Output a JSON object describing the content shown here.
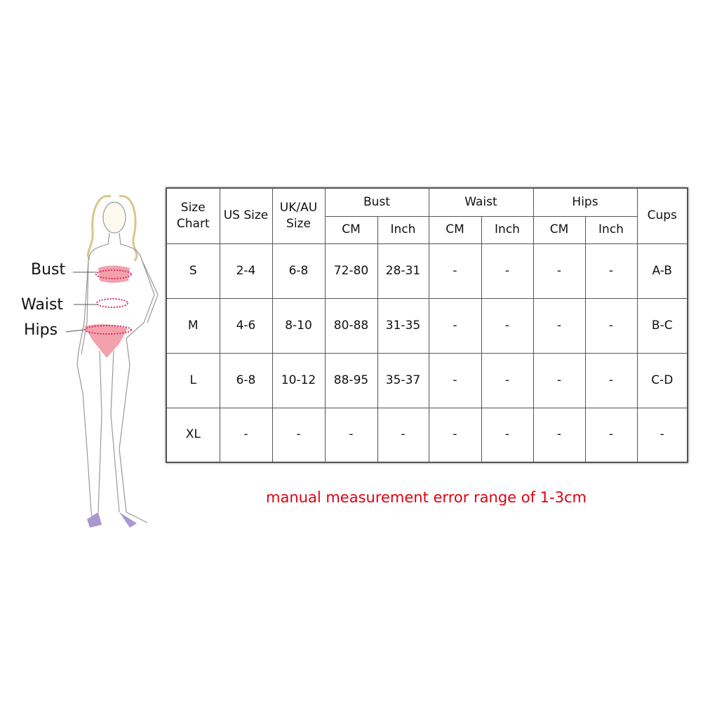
{
  "figure": {
    "labels": {
      "bust": "Bust",
      "waist": "Waist",
      "hips": "Hips"
    },
    "accent": "#e0506a"
  },
  "table": {
    "headers": {
      "size_chart": "Size Chart",
      "us_size": "US Size",
      "ukau_size": "UK/AU Size",
      "bust": "Bust",
      "waist": "Waist",
      "hips": "Hips",
      "cups": "Cups",
      "sub": [
        "CM",
        "Inch",
        "CM",
        "Inch",
        "CM",
        "Inch"
      ]
    },
    "rows": [
      [
        "S",
        "2-4",
        "6-8",
        "72-80",
        "28-31",
        "-",
        "-",
        "-",
        "-",
        "A-B"
      ],
      [
        "M",
        "4-6",
        "8-10",
        "80-88",
        "31-35",
        "-",
        "-",
        "-",
        "-",
        "B-C"
      ],
      [
        "L",
        "6-8",
        "10-12",
        "88-95",
        "35-37",
        "-",
        "-",
        "-",
        "-",
        "C-D"
      ],
      [
        "XL",
        "-",
        "-",
        "-",
        "-",
        "-",
        "-",
        "-",
        "-",
        "-"
      ]
    ]
  },
  "note": {
    "text": "manual measurement error range of 1-3cm",
    "color": "#e00010"
  }
}
